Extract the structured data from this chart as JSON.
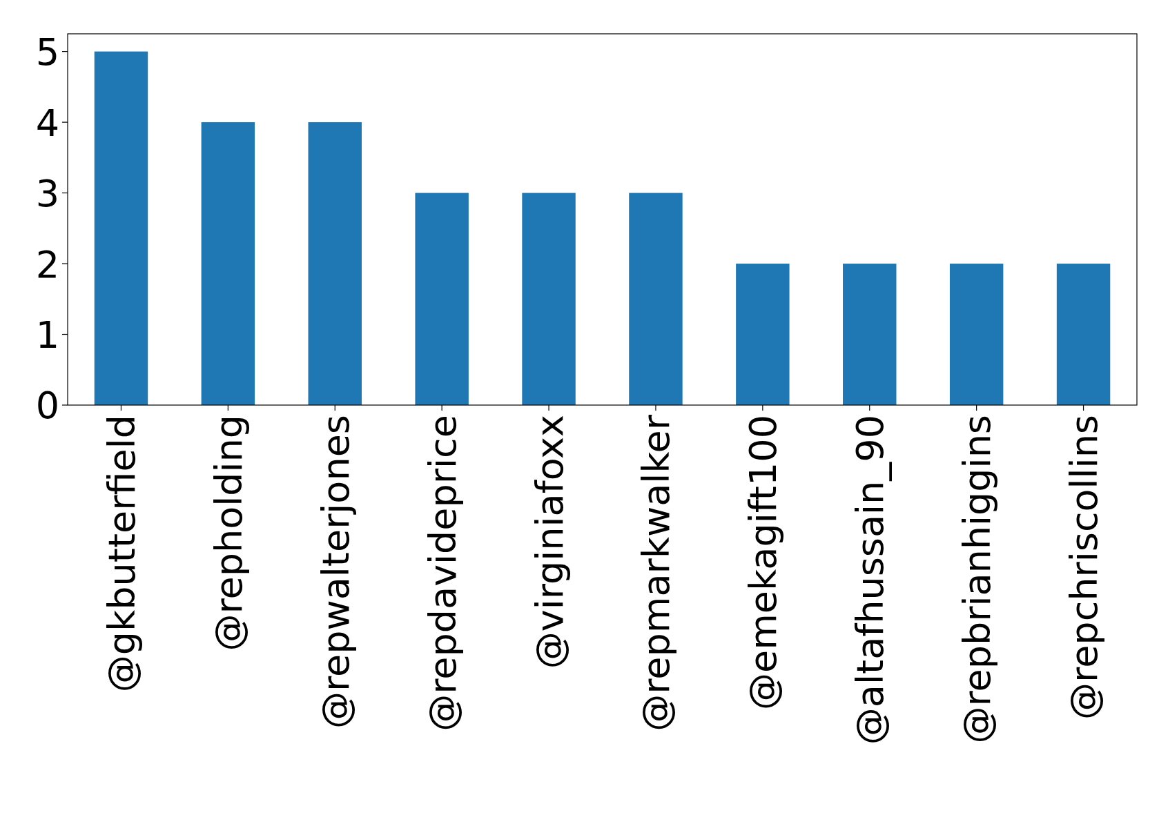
{
  "chart_data": {
    "type": "bar",
    "categories": [
      "@gkbutterfield",
      "@repholding",
      "@repwalterjones",
      "@repdavideprice",
      "@virginiafoxx",
      "@repmarkwalker",
      "@emekagift100",
      "@altafhussain_90",
      "@repbrianhiggins",
      "@repchriscollins"
    ],
    "values": [
      5,
      4,
      4,
      3,
      3,
      3,
      2,
      2,
      2,
      2
    ],
    "color": "#1f77b4",
    "ylim": [
      0,
      5.25
    ],
    "yticks": [
      0,
      1,
      2,
      3,
      4,
      5
    ]
  }
}
